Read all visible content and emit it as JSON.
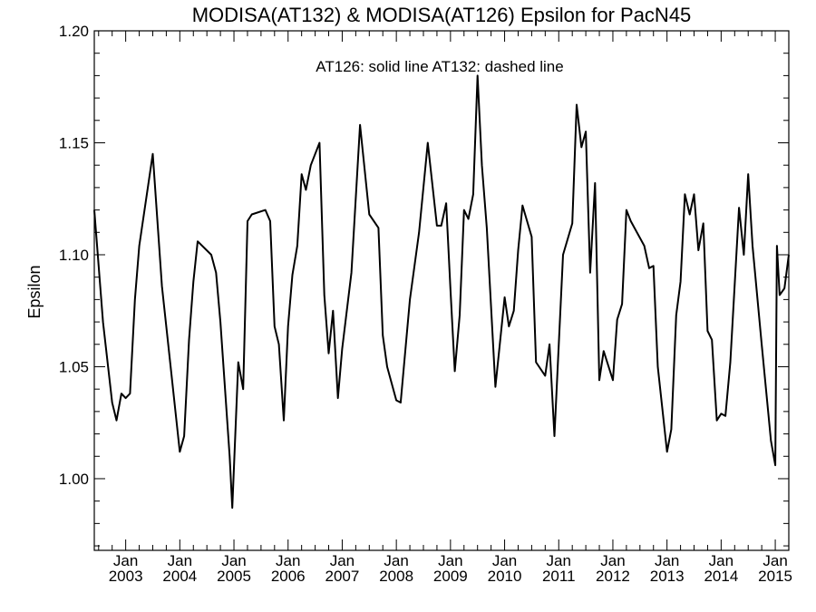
{
  "chart_data": {
    "type": "line",
    "title": "MODISA(AT132) & MODISA(AT126)  Epsilon for PacN45",
    "annotation": "AT126: solid line   AT132: dashed line",
    "ylabel": "Epsilon",
    "xlabel": "",
    "xlim": [
      2002.42,
      2015.25
    ],
    "ylim": [
      0.968,
      1.2
    ],
    "yticks": [
      1.0,
      1.05,
      1.1,
      1.15,
      1.2
    ],
    "ytick_labels": [
      "1.00",
      "1.05",
      "1.10",
      "1.15",
      "1.20"
    ],
    "xticks": [
      2003,
      2004,
      2005,
      2006,
      2007,
      2008,
      2009,
      2010,
      2011,
      2012,
      2013,
      2014,
      2015
    ],
    "xtick_top_labels": [
      "Jan",
      "Jan",
      "Jan",
      "Jan",
      "Jan",
      "Jan",
      "Jan",
      "Jan",
      "Jan",
      "Jan",
      "Jan",
      "Jan",
      "Jan"
    ],
    "xtick_bottom_labels": [
      "2003",
      "2004",
      "2005",
      "2006",
      "2007",
      "2008",
      "2009",
      "2010",
      "2011",
      "2012",
      "2013",
      "2014",
      "2015"
    ],
    "grid": false,
    "line_color": "#000000",
    "series": [
      {
        "style": "solid",
        "x": [
          2002.42,
          2002.58,
          2002.75,
          2002.83,
          2002.92,
          2003.0,
          2003.08,
          2003.17,
          2003.25,
          2003.5,
          2003.67,
          2003.83,
          2004.0,
          2004.08,
          2004.17,
          2004.25,
          2004.33,
          2004.58,
          2004.67,
          2004.75,
          2004.92,
          2004.97,
          2005.08,
          2005.17,
          2005.25,
          2005.33,
          2005.58,
          2005.67,
          2005.75,
          2005.83,
          2005.92,
          2006.0,
          2006.08,
          2006.17,
          2006.25,
          2006.33,
          2006.42,
          2006.58,
          2006.67,
          2006.75,
          2006.83,
          2006.92,
          2007.0,
          2007.17,
          2007.33,
          2007.5,
          2007.67,
          2007.75,
          2007.83,
          2008.0,
          2008.08,
          2008.25,
          2008.42,
          2008.58,
          2008.75,
          2008.83,
          2008.92,
          2009.0,
          2009.08,
          2009.17,
          2009.25,
          2009.33,
          2009.42,
          2009.5,
          2009.58,
          2009.67,
          2009.83,
          2010.0,
          2010.08,
          2010.17,
          2010.25,
          2010.33,
          2010.5,
          2010.58,
          2010.75,
          2010.83,
          2010.92,
          2011.0,
          2011.08,
          2011.25,
          2011.33,
          2011.42,
          2011.5,
          2011.58,
          2011.67,
          2011.75,
          2011.83,
          2012.0,
          2012.08,
          2012.17,
          2012.25,
          2012.33,
          2012.58,
          2012.67,
          2012.75,
          2012.83,
          2013.0,
          2013.08,
          2013.17,
          2013.25,
          2013.33,
          2013.42,
          2013.5,
          2013.58,
          2013.67,
          2013.75,
          2013.83,
          2013.92,
          2014.0,
          2014.08,
          2014.17,
          2014.33,
          2014.42,
          2014.5,
          2014.58,
          2014.75,
          2014.92,
          2015.0,
          2015.03,
          2015.08,
          2015.17,
          2015.25
        ],
        "y": [
          1.12,
          1.07,
          1.034,
          1.026,
          1.038,
          1.036,
          1.038,
          1.08,
          1.104,
          1.145,
          1.086,
          1.05,
          1.012,
          1.019,
          1.062,
          1.088,
          1.106,
          1.1,
          1.092,
          1.07,
          1.01,
          0.987,
          1.052,
          1.04,
          1.115,
          1.118,
          1.12,
          1.115,
          1.068,
          1.06,
          1.026,
          1.068,
          1.091,
          1.104,
          1.136,
          1.129,
          1.14,
          1.15,
          1.082,
          1.056,
          1.075,
          1.036,
          1.058,
          1.092,
          1.158,
          1.118,
          1.112,
          1.064,
          1.05,
          1.035,
          1.034,
          1.08,
          1.11,
          1.15,
          1.113,
          1.113,
          1.123,
          1.084,
          1.048,
          1.073,
          1.12,
          1.116,
          1.127,
          1.18,
          1.14,
          1.112,
          1.041,
          1.081,
          1.068,
          1.075,
          1.102,
          1.122,
          1.108,
          1.052,
          1.046,
          1.06,
          1.019,
          1.06,
          1.1,
          1.114,
          1.167,
          1.148,
          1.155,
          1.092,
          1.132,
          1.044,
          1.057,
          1.044,
          1.071,
          1.078,
          1.12,
          1.115,
          1.104,
          1.094,
          1.095,
          1.05,
          1.012,
          1.022,
          1.073,
          1.088,
          1.127,
          1.118,
          1.127,
          1.102,
          1.114,
          1.066,
          1.062,
          1.026,
          1.029,
          1.028,
          1.052,
          1.121,
          1.1,
          1.136,
          1.104,
          1.06,
          1.017,
          1.006,
          1.104,
          1.082,
          1.085,
          1.1
        ]
      }
    ]
  }
}
